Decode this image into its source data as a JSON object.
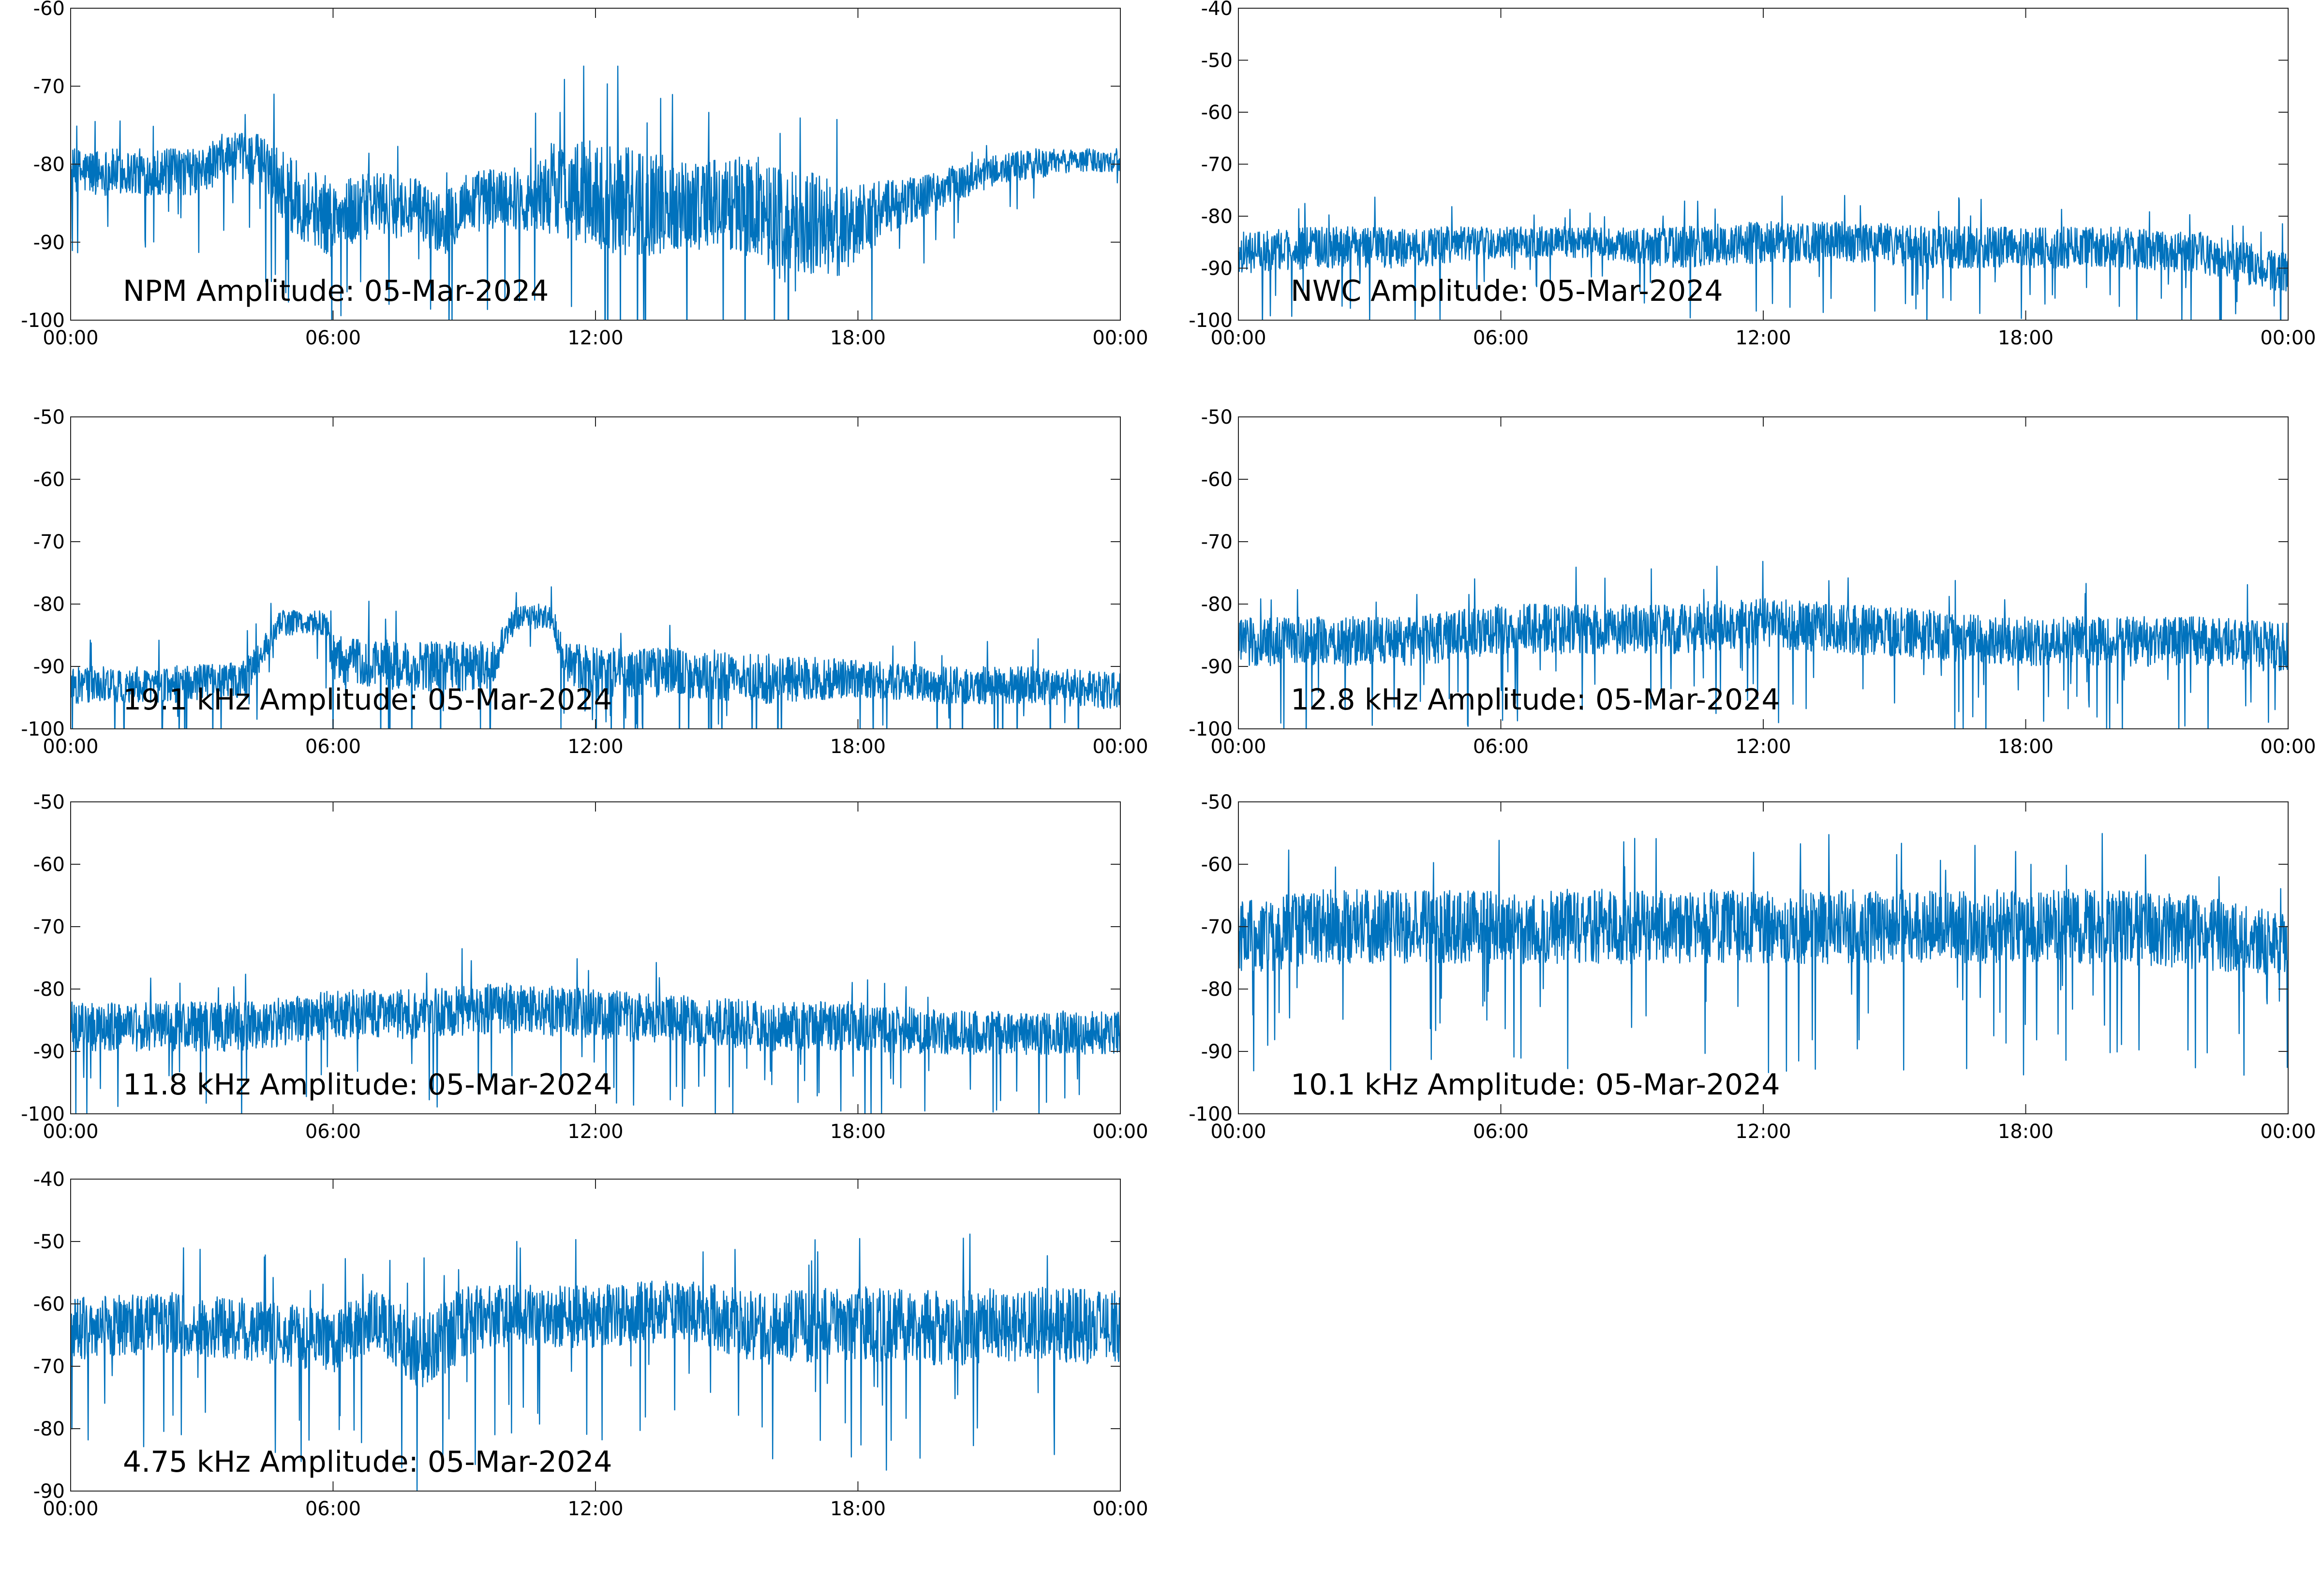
{
  "series_color": "#0072BD",
  "chart_data": [
    {
      "type": "line",
      "title": "NPM Amplitude: 05-Mar-2024",
      "x_ticks": [
        "00:00",
        "06:00",
        "12:00",
        "18:00",
        "00:00"
      ],
      "ylim": [
        -100,
        -60
      ],
      "y_ticks": [
        "-60",
        "-70",
        "-80",
        "-90",
        "-100"
      ],
      "grid": false,
      "series": [
        {
          "x_hours": [
            0,
            1,
            2,
            3,
            3.5,
            4,
            4.5,
            5,
            6,
            7,
            8,
            8.5,
            9,
            10,
            10.5,
            11,
            12,
            13,
            14,
            15,
            16,
            16.5,
            17,
            17.5,
            18,
            19,
            20,
            21,
            22,
            23,
            24
          ],
          "center": [
            -81,
            -81,
            -81,
            -81,
            -79,
            -79,
            -80,
            -84,
            -87,
            -85,
            -86,
            -88,
            -85,
            -84,
            -85,
            -83,
            -84,
            -85,
            -85,
            -85,
            -86,
            -89,
            -87,
            -89,
            -87,
            -85,
            -83,
            -81,
            -80,
            -79.5,
            -79.5
          ],
          "band": [
            3,
            3,
            3,
            3,
            3,
            3,
            4,
            5,
            5,
            4,
            4,
            4,
            4,
            4,
            4,
            6,
            7,
            7,
            6,
            6,
            7,
            8,
            7,
            6,
            5,
            3,
            2.5,
            2,
            2,
            1.5,
            1.5
          ]
        }
      ]
    },
    {
      "type": "line",
      "title": "NWC Amplitude: 05-Mar-2024",
      "x_ticks": [
        "00:00",
        "06:00",
        "12:00",
        "18:00",
        "00:00"
      ],
      "ylim": [
        -100,
        -40
      ],
      "y_ticks": [
        "-40",
        "-50",
        "-60",
        "-70",
        "-80",
        "-90",
        "-100"
      ],
      "grid": false,
      "series": [
        {
          "x_hours": [
            0,
            2,
            4,
            6,
            8,
            10,
            12,
            14,
            16,
            18,
            20,
            22,
            23,
            24
          ],
          "center": [
            -87,
            -86,
            -86,
            -85,
            -85,
            -86,
            -85,
            -85,
            -86,
            -86,
            -86,
            -87,
            -89,
            -91
          ],
          "band": [
            4,
            4,
            4,
            3,
            3,
            4,
            4,
            4,
            4,
            4,
            4,
            4,
            4,
            4
          ]
        }
      ]
    },
    {
      "type": "line",
      "title": "19.1 kHz Amplitude: 05-Mar-2024",
      "x_ticks": [
        "00:00",
        "06:00",
        "12:00",
        "18:00",
        "00:00"
      ],
      "ylim": [
        -100,
        -50
      ],
      "y_ticks": [
        "-50",
        "-60",
        "-70",
        "-80",
        "-90",
        "-100"
      ],
      "grid": false,
      "series": [
        {
          "x_hours": [
            0,
            2,
            4,
            4.8,
            5.8,
            6,
            8,
            9.6,
            10.2,
            11,
            11.3,
            12,
            14,
            16,
            18,
            20,
            22,
            24
          ],
          "center": [
            -93,
            -93,
            -92,
            -83,
            -83,
            -89,
            -90,
            -90,
            -82,
            -82,
            -90,
            -91,
            -91,
            -92,
            -92,
            -93,
            -93,
            -94
          ],
          "band": [
            3,
            3,
            3,
            2,
            2,
            4,
            4,
            4,
            2,
            2,
            4,
            4,
            4,
            4,
            3,
            3,
            3,
            3
          ]
        }
      ]
    },
    {
      "type": "line",
      "title": "12.8 kHz Amplitude: 05-Mar-2024",
      "x_ticks": [
        "00:00",
        "06:00",
        "12:00",
        "18:00",
        "00:00"
      ],
      "ylim": [
        -100,
        -50
      ],
      "y_ticks": [
        "-50",
        "-60",
        "-70",
        "-80",
        "-90",
        "-100"
      ],
      "grid": false,
      "series": [
        {
          "x_hours": [
            0,
            2,
            4,
            6,
            8,
            10,
            12,
            14,
            16,
            18,
            20,
            22,
            24
          ],
          "center": [
            -86,
            -86,
            -86,
            -84,
            -84,
            -84,
            -83,
            -84,
            -85,
            -86,
            -86,
            -86,
            -87
          ],
          "band": [
            4,
            4,
            4,
            4,
            4,
            4,
            4,
            4,
            4,
            4,
            4,
            4,
            4
          ]
        }
      ]
    },
    {
      "type": "line",
      "title": "11.8 kHz Amplitude: 05-Mar-2024",
      "x_ticks": [
        "00:00",
        "06:00",
        "12:00",
        "18:00",
        "00:00"
      ],
      "ylim": [
        -100,
        -50
      ],
      "y_ticks": [
        "-50",
        "-60",
        "-70",
        "-80",
        "-90",
        "-100"
      ],
      "grid": false,
      "series": [
        {
          "x_hours": [
            0,
            2,
            4,
            6,
            8,
            10,
            12,
            14,
            16,
            18,
            20,
            22,
            24
          ],
          "center": [
            -86,
            -86,
            -86,
            -84,
            -84,
            -83,
            -84,
            -85,
            -86,
            -86,
            -87,
            -87,
            -87
          ],
          "band": [
            4,
            4,
            4,
            4,
            4,
            4,
            4,
            4,
            4,
            4,
            3.5,
            3.5,
            3.5
          ]
        }
      ]
    },
    {
      "type": "line",
      "title": "10.1 kHz Amplitude: 05-Mar-2024",
      "x_ticks": [
        "00:00",
        "06:00",
        "12:00",
        "18:00",
        "00:00"
      ],
      "ylim": [
        -100,
        -50
      ],
      "y_ticks": [
        "-50",
        "-60",
        "-70",
        "-80",
        "-90",
        "-100"
      ],
      "grid": false,
      "series": [
        {
          "x_hours": [
            0,
            2,
            4,
            6,
            8,
            10,
            12,
            14,
            16,
            18,
            20,
            22,
            24
          ],
          "center": [
            -72,
            -70,
            -70,
            -70,
            -70,
            -70,
            -70,
            -70,
            -70,
            -70,
            -70,
            -71,
            -73
          ],
          "band": [
            6,
            6,
            6,
            6,
            6,
            6,
            6,
            6,
            6,
            6,
            6,
            6,
            5
          ]
        }
      ]
    },
    {
      "type": "line",
      "title": "4.75 kHz Amplitude: 05-Mar-2024",
      "x_ticks": [
        "00:00",
        "06:00",
        "12:00",
        "18:00",
        "00:00"
      ],
      "ylim": [
        -90,
        -40
      ],
      "y_ticks": [
        "-40",
        "-50",
        "-60",
        "-70",
        "-80",
        "-90"
      ],
      "grid": false,
      "series": [
        {
          "x_hours": [
            0,
            2,
            4,
            6,
            7,
            8,
            9,
            10,
            12,
            14,
            16,
            18,
            20,
            22,
            24
          ],
          "center": [
            -64,
            -63,
            -64,
            -66,
            -62,
            -68,
            -63,
            -62,
            -62,
            -61,
            -64,
            -63,
            -64,
            -63,
            -64
          ],
          "band": [
            5,
            5,
            5,
            5,
            5,
            6,
            6,
            5,
            5,
            5,
            6,
            6,
            6,
            6,
            6
          ]
        }
      ]
    }
  ]
}
